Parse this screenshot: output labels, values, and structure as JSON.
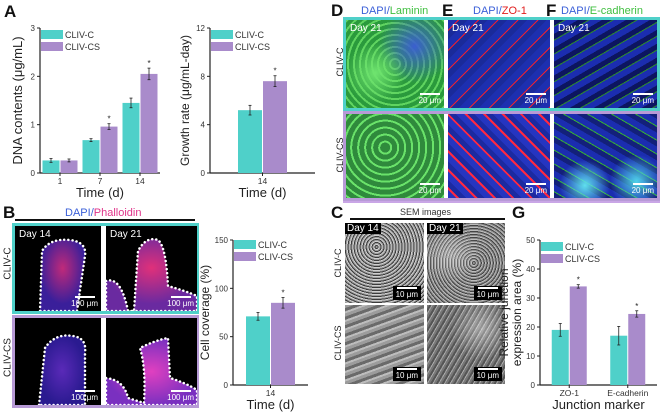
{
  "panels": {
    "A": "A",
    "B": "B",
    "C": "C",
    "D": "D",
    "E": "E",
    "F": "F",
    "G": "G"
  },
  "colors": {
    "cliv_c": "#4fd0c9",
    "cliv_cs": "#a98bcb",
    "frame_c": "#4fd0c9",
    "frame_cs": "#b79ad6"
  },
  "panel_b": {
    "stain_a": "DAPI",
    "sep": "/",
    "stain_b": "Phalloidin",
    "days": [
      "Day 14",
      "Day 21"
    ],
    "rows": [
      "CLIV-C",
      "CLIV-CS"
    ],
    "scale": "100 μm"
  },
  "panel_c": {
    "title": "SEM images",
    "days": [
      "Day 14",
      "Day 21"
    ],
    "rows": [
      "CLIV-C",
      "CLIV-CS"
    ],
    "scale": "10 μm"
  },
  "panel_def": {
    "d": {
      "stain_a": "DAPI",
      "sep": "/",
      "stain_b": "Laminin"
    },
    "e": {
      "stain_a": "DAPI",
      "sep": "/",
      "stain_b": "ZO-1"
    },
    "f": {
      "stain_a": "DAPI",
      "sep": "/",
      "stain_b": "E-cadherin"
    },
    "day": "Day 21",
    "rows": [
      "CLIV-C",
      "CLIV-CS"
    ],
    "scale": "20 μm"
  },
  "chart_data": [
    {
      "type": "bar",
      "panel": "A",
      "title": "",
      "xlabel": "Time (d)",
      "ylabel": "DNA contents (μg/mL)",
      "ylim": [
        0,
        3
      ],
      "yticks": [
        "0",
        "1",
        "2",
        "3"
      ],
      "categories": [
        "1",
        "7",
        "14"
      ],
      "series": [
        {
          "name": "CLIV-C",
          "values": [
            0.26,
            0.68,
            1.45
          ],
          "errors": [
            0.04,
            0.03,
            0.1
          ],
          "sig": [
            false,
            false,
            false
          ]
        },
        {
          "name": "CLIV-CS",
          "values": [
            0.26,
            0.96,
            2.05
          ],
          "errors": [
            0.03,
            0.06,
            0.12
          ],
          "sig": [
            false,
            true,
            true
          ]
        }
      ],
      "sig_mark": "*",
      "legend": "top-left"
    },
    {
      "type": "bar",
      "panel": "A",
      "title": "",
      "xlabel": "Time (d)",
      "ylabel": "Growth rate (μg/mL-day)",
      "ylim": [
        0,
        12
      ],
      "yticks": [
        "0",
        "4",
        "8",
        "12"
      ],
      "categories": [
        "14"
      ],
      "series": [
        {
          "name": "CLIV-C",
          "values": [
            5.2
          ],
          "errors": [
            0.4
          ],
          "sig": [
            false
          ]
        },
        {
          "name": "CLIV-CS",
          "values": [
            7.6
          ],
          "errors": [
            0.45
          ],
          "sig": [
            true
          ]
        }
      ],
      "sig_mark": "*",
      "legend": "top-left"
    },
    {
      "type": "bar",
      "panel": "B",
      "title": "",
      "xlabel": "Time (d)",
      "ylabel": "Cell coverage (%)",
      "ylim": [
        0,
        150
      ],
      "yticks": [
        "0",
        "50",
        "100",
        "150"
      ],
      "categories": [
        "14"
      ],
      "series": [
        {
          "name": "CLIV-C",
          "values": [
            71
          ],
          "errors": [
            4
          ],
          "sig": [
            false
          ]
        },
        {
          "name": "CLIV-CS",
          "values": [
            85
          ],
          "errors": [
            5.5
          ],
          "sig": [
            true
          ]
        }
      ],
      "sig_mark": "*",
      "legend": "top-left"
    },
    {
      "type": "bar",
      "panel": "G",
      "title": "",
      "xlabel": "Junction marker",
      "ylabel": [
        "Relative junction",
        "expression area (%)"
      ],
      "ylim": [
        0,
        50
      ],
      "yticks": [
        "0",
        "10",
        "20",
        "30",
        "40",
        "50"
      ],
      "categories": [
        "ZO-1",
        "E-cadherin"
      ],
      "series": [
        {
          "name": "CLIV-C",
          "values": [
            19,
            17
          ],
          "errors": [
            2.2,
            3.2
          ],
          "sig": [
            false,
            false
          ]
        },
        {
          "name": "CLIV-CS",
          "values": [
            34,
            24.5
          ],
          "errors": [
            0.6,
            1.1
          ],
          "sig": [
            true,
            true
          ]
        }
      ],
      "sig_mark": "*",
      "legend": "top-left"
    }
  ]
}
